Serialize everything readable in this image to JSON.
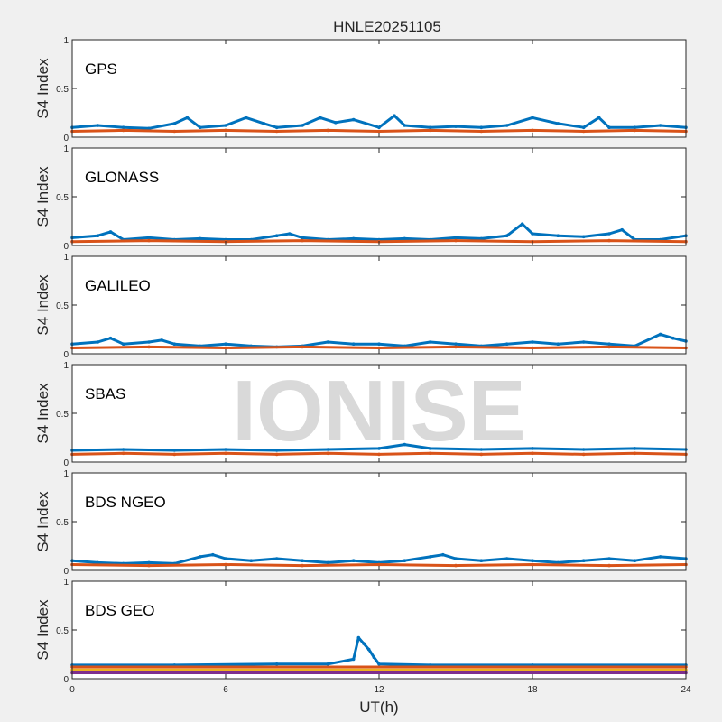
{
  "title": "HNLE20251105",
  "watermark": "IONISE",
  "xlabel": "UT(h)",
  "xlim": [
    0,
    24
  ],
  "xticks": [
    0,
    6,
    12,
    18,
    24
  ],
  "colors": {
    "background": "#f0f0f0",
    "axes": "#ffffff",
    "watermark": "#d9d9d9",
    "palette": [
      "#0072BD",
      "#D95319",
      "#EDB120",
      "#7E2F8E",
      "#77AC30",
      "#4DBEEE",
      "#A2142F"
    ]
  },
  "chart_data": [
    {
      "type": "scatter",
      "label": "GPS",
      "ylabel": "S4 Index",
      "ylim": [
        0,
        1
      ],
      "yticks": [
        0,
        0.5,
        1
      ],
      "series": [
        {
          "values_x": [
            0,
            1,
            2,
            3,
            4,
            4.5,
            5,
            6,
            6.8,
            7.5,
            8,
            9,
            9.7,
            10.3,
            11,
            12,
            12.6,
            13,
            14,
            15,
            16,
            17,
            18,
            19,
            20,
            20.6,
            21,
            22,
            23,
            24
          ],
          "values_y": [
            0.1,
            0.12,
            0.1,
            0.09,
            0.14,
            0.2,
            0.1,
            0.12,
            0.2,
            0.14,
            0.1,
            0.12,
            0.2,
            0.15,
            0.18,
            0.1,
            0.22,
            0.12,
            0.1,
            0.11,
            0.1,
            0.12,
            0.2,
            0.14,
            0.1,
            0.2,
            0.1,
            0.1,
            0.12,
            0.1
          ]
        },
        {
          "values_x": [
            0,
            2,
            4,
            6,
            8,
            10,
            12,
            14,
            16,
            18,
            20,
            22,
            24
          ],
          "values_y": [
            0.06,
            0.07,
            0.06,
            0.07,
            0.06,
            0.07,
            0.06,
            0.07,
            0.06,
            0.07,
            0.06,
            0.07,
            0.06
          ]
        }
      ]
    },
    {
      "type": "scatter",
      "label": "GLONASS",
      "ylabel": "S4 Index",
      "ylim": [
        0,
        1
      ],
      "yticks": [
        0,
        0.5,
        1
      ],
      "series": [
        {
          "values_x": [
            0,
            1,
            1.5,
            2,
            3,
            4,
            5,
            6,
            7,
            8,
            8.5,
            9,
            10,
            11,
            12,
            13,
            14,
            15,
            16,
            17,
            17.6,
            18,
            19,
            20,
            21,
            21.5,
            22,
            23,
            24
          ],
          "values_y": [
            0.08,
            0.1,
            0.14,
            0.06,
            0.08,
            0.06,
            0.07,
            0.06,
            0.06,
            0.1,
            0.12,
            0.08,
            0.06,
            0.07,
            0.06,
            0.07,
            0.06,
            0.08,
            0.07,
            0.1,
            0.22,
            0.12,
            0.1,
            0.09,
            0.12,
            0.16,
            0.06,
            0.06,
            0.1
          ]
        },
        {
          "values_x": [
            0,
            3,
            6,
            9,
            12,
            15,
            18,
            21,
            24
          ],
          "values_y": [
            0.04,
            0.05,
            0.04,
            0.05,
            0.04,
            0.05,
            0.04,
            0.05,
            0.04
          ]
        }
      ]
    },
    {
      "type": "scatter",
      "label": "GALILEO",
      "ylabel": "S4 Index",
      "ylim": [
        0,
        1
      ],
      "yticks": [
        0,
        0.5,
        1
      ],
      "series": [
        {
          "values_x": [
            0,
            1,
            1.5,
            2,
            3,
            3.5,
            4,
            5,
            6,
            7,
            8,
            9,
            10,
            11,
            12,
            13,
            14,
            15,
            16,
            17,
            18,
            19,
            20,
            21,
            22,
            23,
            23.5,
            24
          ],
          "values_y": [
            0.1,
            0.12,
            0.16,
            0.1,
            0.12,
            0.14,
            0.1,
            0.08,
            0.1,
            0.08,
            0.07,
            0.08,
            0.12,
            0.1,
            0.1,
            0.08,
            0.12,
            0.1,
            0.08,
            0.1,
            0.12,
            0.1,
            0.12,
            0.1,
            0.08,
            0.2,
            0.16,
            0.13
          ]
        },
        {
          "values_x": [
            0,
            3,
            6,
            9,
            12,
            15,
            18,
            21,
            24
          ],
          "values_y": [
            0.06,
            0.07,
            0.06,
            0.07,
            0.06,
            0.07,
            0.06,
            0.07,
            0.06
          ]
        }
      ]
    },
    {
      "type": "scatter",
      "label": "SBAS",
      "ylabel": "S4 Index",
      "ylim": [
        0,
        1
      ],
      "yticks": [
        0,
        0.5,
        1
      ],
      "series": [
        {
          "values_x": [
            0,
            2,
            4,
            6,
            8,
            10,
            12,
            13,
            14,
            16,
            18,
            20,
            22,
            24
          ],
          "values_y": [
            0.12,
            0.13,
            0.12,
            0.13,
            0.12,
            0.13,
            0.14,
            0.18,
            0.14,
            0.13,
            0.14,
            0.13,
            0.14,
            0.13
          ]
        },
        {
          "values_x": [
            0,
            2,
            4,
            6,
            8,
            10,
            12,
            14,
            16,
            18,
            20,
            22,
            24
          ],
          "values_y": [
            0.08,
            0.09,
            0.08,
            0.09,
            0.08,
            0.09,
            0.08,
            0.09,
            0.08,
            0.09,
            0.08,
            0.09,
            0.08
          ]
        }
      ]
    },
    {
      "type": "scatter",
      "label": "BDS NGEO",
      "ylabel": "S4 Index",
      "ylim": [
        0,
        1
      ],
      "yticks": [
        0,
        0.5,
        1
      ],
      "series": [
        {
          "values_x": [
            0,
            1,
            2,
            3,
            4,
            5,
            5.5,
            6,
            7,
            8,
            9,
            10,
            11,
            12,
            13,
            14,
            14.5,
            15,
            16,
            17,
            18,
            19,
            20,
            21,
            22,
            23,
            24
          ],
          "values_y": [
            0.1,
            0.08,
            0.07,
            0.08,
            0.07,
            0.14,
            0.16,
            0.12,
            0.1,
            0.12,
            0.1,
            0.08,
            0.1,
            0.08,
            0.1,
            0.14,
            0.16,
            0.12,
            0.1,
            0.12,
            0.1,
            0.08,
            0.1,
            0.12,
            0.1,
            0.14,
            0.12
          ]
        },
        {
          "values_x": [
            0,
            3,
            6,
            9,
            12,
            15,
            18,
            21,
            24
          ],
          "values_y": [
            0.06,
            0.05,
            0.06,
            0.05,
            0.06,
            0.05,
            0.06,
            0.05,
            0.06
          ]
        }
      ]
    },
    {
      "type": "scatter",
      "label": "BDS GEO",
      "ylabel": "S4 Index",
      "ylim": [
        0,
        1
      ],
      "yticks": [
        0,
        0.5,
        1
      ],
      "series": [
        {
          "values_x": [
            0,
            4,
            8,
            10,
            11,
            11.2,
            11.4,
            11.6,
            11.8,
            12,
            14,
            18,
            24
          ],
          "values_y": [
            0.14,
            0.14,
            0.15,
            0.15,
            0.2,
            0.42,
            0.36,
            0.3,
            0.22,
            0.15,
            0.14,
            0.14,
            0.14
          ]
        },
        {
          "values_x": [
            0,
            24
          ],
          "values_y": [
            0.12,
            0.12
          ]
        },
        {
          "values_x": [
            0,
            24
          ],
          "values_y": [
            0.09,
            0.09
          ]
        },
        {
          "values_x": [
            0,
            24
          ],
          "values_y": [
            0.06,
            0.06
          ]
        }
      ]
    }
  ]
}
